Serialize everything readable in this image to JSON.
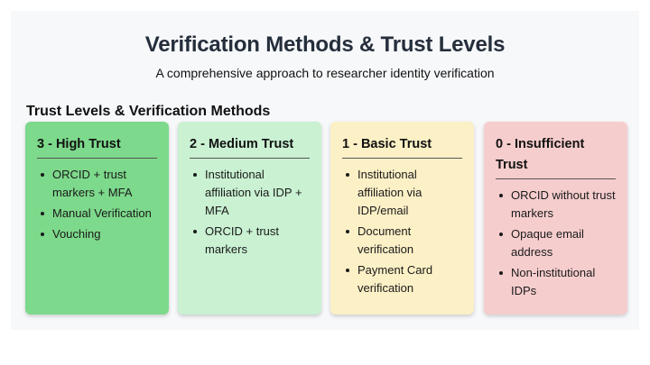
{
  "header": {
    "title": "Verification Methods & Trust Levels",
    "subtitle": "A comprehensive approach to researcher identity verification"
  },
  "section_title": "Trust Levels & Verification Methods",
  "cards": [
    {
      "title": "3 - High Trust",
      "color": "#7dd98b",
      "items": [
        "ORCID + trust markers + MFA",
        "Manual Verification",
        "Vouching"
      ]
    },
    {
      "title": "2 - Medium Trust",
      "color": "#c9f1d2",
      "items": [
        "Institutional affiliation via IDP + MFA",
        "ORCID + trust markers"
      ]
    },
    {
      "title": "1 - Basic Trust",
      "color": "#fcf0c6",
      "items": [
        "Institutional affiliation via IDP/email",
        "Document verification",
        "Payment Card verification"
      ]
    },
    {
      "title": "0 - Insufficient Trust",
      "color": "#f6cdcd",
      "items": [
        "ORCID without trust markers",
        "Opaque email address",
        "Non-institutional IDPs"
      ]
    }
  ]
}
